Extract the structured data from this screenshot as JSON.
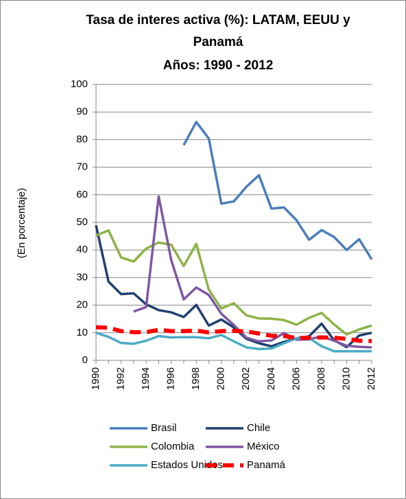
{
  "chart_data": {
    "type": "line",
    "title": "Tasa de interes activa (%): LATAM, EEUU y Panamá",
    "subtitle": "Años: 1990 - 2012",
    "ylabel": "(En porcentaje)",
    "x": [
      1990,
      1991,
      1992,
      1993,
      1994,
      1995,
      1996,
      1997,
      1998,
      1999,
      2000,
      2001,
      2002,
      2003,
      2004,
      2005,
      2006,
      2007,
      2008,
      2009,
      2010,
      2011,
      2012
    ],
    "xlim": [
      1990,
      2012
    ],
    "xticks": [
      1990,
      1992,
      1994,
      1996,
      1998,
      2000,
      2002,
      2004,
      2006,
      2008,
      2010,
      2012
    ],
    "ylim": [
      0,
      100
    ],
    "yticks": [
      0,
      10,
      20,
      30,
      40,
      50,
      60,
      70,
      80,
      90,
      100
    ],
    "grid": true,
    "legend": "bottom",
    "series": [
      {
        "name": "Brasil",
        "color": "#4a7ebb",
        "values": [
          null,
          null,
          null,
          null,
          null,
          null,
          null,
          78,
          86.4,
          80.4,
          56.8,
          57.6,
          62.9,
          67.1,
          55,
          55.4,
          50.8,
          43.7,
          47.2,
          44.7,
          40,
          43.9,
          36.6
        ]
      },
      {
        "name": "Chile",
        "color": "#1f3f6e",
        "values": [
          48.9,
          28.5,
          24,
          24.3,
          20.3,
          18.2,
          17.4,
          15.7,
          20.1,
          12.6,
          14.8,
          11.9,
          7.8,
          6.2,
          5.1,
          6.7,
          8,
          8.7,
          13.3,
          7.3,
          4.8,
          9,
          10
        ]
      },
      {
        "name": "Colombia",
        "color": "#8db347",
        "values": [
          45.2,
          47.1,
          37.3,
          35.8,
          40.5,
          42.7,
          41.9,
          34.2,
          42.2,
          25.6,
          18.8,
          20.7,
          16.3,
          15.2,
          15.1,
          14.6,
          12.9,
          15.4,
          17.2,
          13,
          9.4,
          11.2,
          12.6
        ]
      },
      {
        "name": "México",
        "color": "#7e57a4",
        "values": [
          null,
          null,
          null,
          17.7,
          19.3,
          59.4,
          36.4,
          22.1,
          26.4,
          23.7,
          16.9,
          12.8,
          8.2,
          6.9,
          7.2,
          9.9,
          7.5,
          7.6,
          8.7,
          7.1,
          5.3,
          4.9,
          4.7
        ]
      },
      {
        "name": "Estados Unidos",
        "color": "#4bacc6",
        "values": [
          10,
          8.5,
          6.3,
          6,
          7.1,
          8.8,
          8.3,
          8.4,
          8.4,
          8,
          9.2,
          6.9,
          4.7,
          4.1,
          4.3,
          6.2,
          8,
          8.1,
          5.1,
          3.3,
          3.3,
          3.3,
          3.3
        ]
      },
      {
        "name": "Panamá",
        "color": "#ff0000",
        "dashed": true,
        "values": [
          12,
          11.8,
          10.6,
          10.2,
          10.2,
          11.1,
          10.6,
          10.6,
          10.8,
          10.1,
          10.6,
          10.7,
          10.5,
          9.7,
          8.9,
          8.8,
          8.1,
          8.2,
          8.3,
          8.2,
          7.8,
          7.1,
          7
        ]
      }
    ]
  }
}
